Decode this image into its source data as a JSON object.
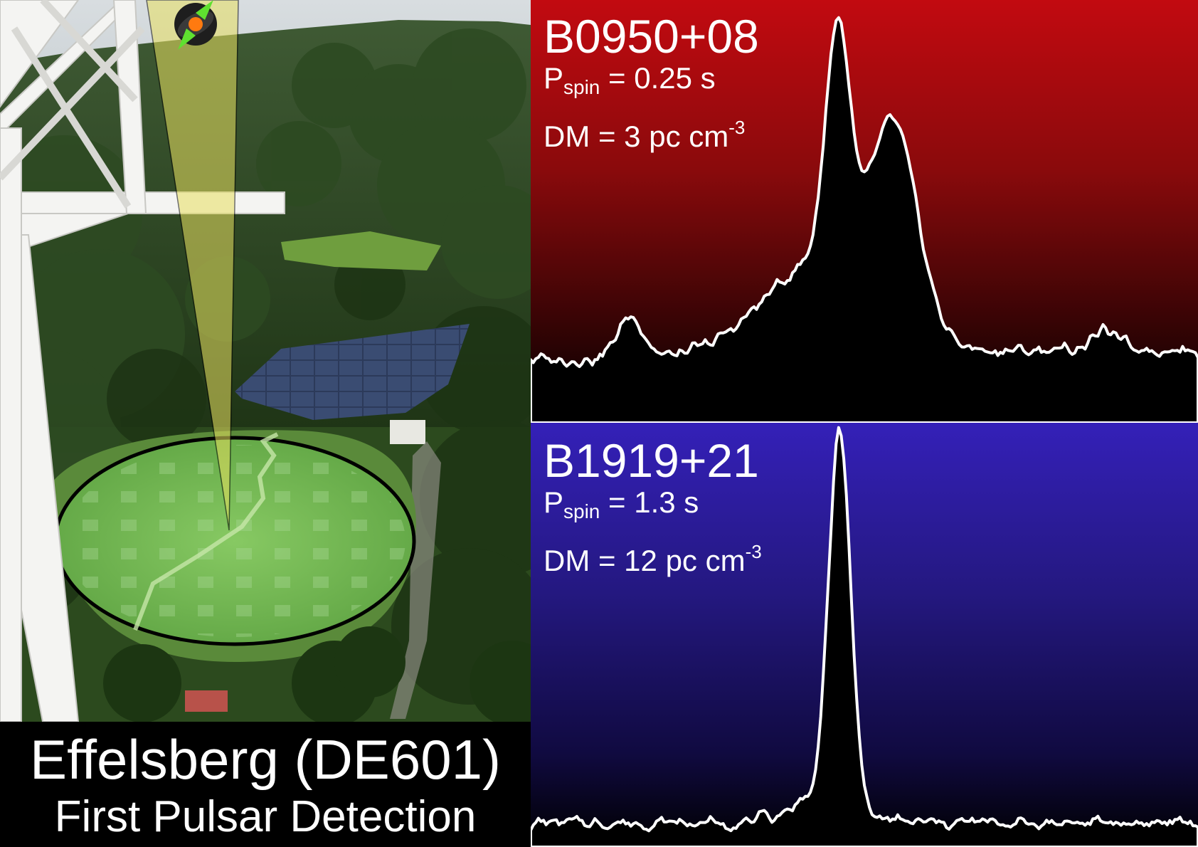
{
  "caption": {
    "title": "Effelsberg (DE601)",
    "subtitle": "First Pulsar Detection"
  },
  "pulsars": [
    {
      "name": "B0950+08",
      "spin_label": "P",
      "spin_sub": "spin",
      "spin_value": " = 0.25 s",
      "dm_label": "DM = 3 pc cm",
      "dm_sup": "-3",
      "color": "#c20a10"
    },
    {
      "name": "B1919+21",
      "spin_label": "P",
      "spin_sub": "spin",
      "spin_value": " = 1.3 s",
      "dm_label": "DM = 12 pc cm",
      "dm_sup": "-3",
      "color": "#3420b8"
    }
  ],
  "colors": {
    "profile_line": "#ffffff",
    "profile_fill": "#000000",
    "field_overlay": "#7fd04a",
    "beam_cone": "#e8e060"
  }
}
